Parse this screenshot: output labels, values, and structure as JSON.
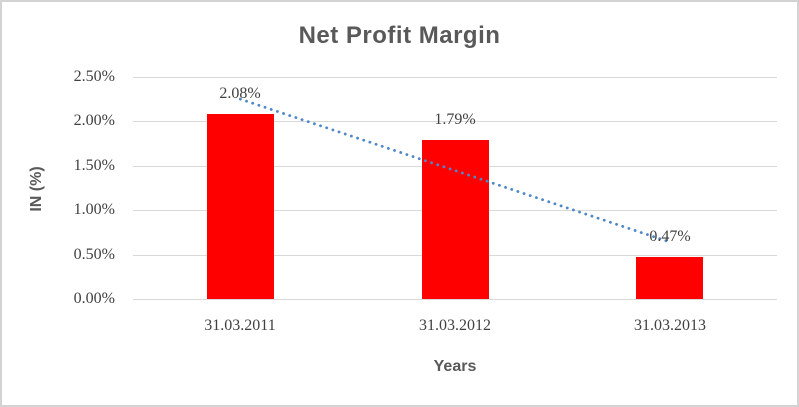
{
  "chart_data": {
    "type": "bar",
    "title": "Net Profit Margin",
    "xlabel": "Years",
    "ylabel": "IN (%)",
    "categories": [
      "31.03.2011",
      "31.03.2012",
      "31.03.2013"
    ],
    "values": [
      2.08,
      1.79,
      0.47
    ],
    "data_labels": [
      "2.08%",
      "1.79%",
      "0.47%"
    ],
    "ylim": [
      0,
      2.5
    ],
    "ytick_step": 0.5,
    "ytick_labels": [
      "0.00%",
      "0.50%",
      "1.00%",
      "1.50%",
      "2.00%",
      "2.50%"
    ],
    "grid": true,
    "legend": "none",
    "trendline": {
      "type": "linear",
      "style": "dotted",
      "series": "values"
    }
  },
  "colors": {
    "bar": "#ff0000",
    "trendline": "#4e87c8",
    "gridline": "#d9d9d9",
    "axis_line": "#d9d9d9",
    "title_text": "#595959",
    "axis_title_text": "#595959",
    "tick_label_text": "#404040",
    "data_label_text": "#404040",
    "chart_border": "#d3d3d3",
    "background": "#ffffff"
  }
}
